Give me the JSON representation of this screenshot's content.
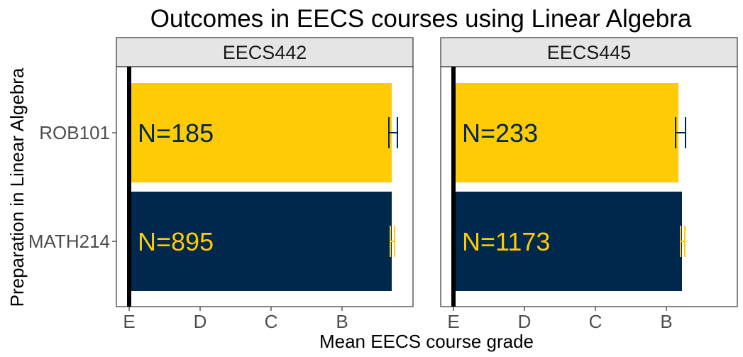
{
  "chart_data": {
    "type": "bar",
    "title": "Outcomes in EECS courses using Linear Algebra",
    "xlabel": "Mean EECS course grade",
    "ylabel": "Preparation in Linear Algebra",
    "x_ticks": [
      "E",
      "D",
      "C",
      "B"
    ],
    "x_tick_values": [
      0,
      1,
      2,
      3
    ],
    "xlim": [
      -0.18,
      4.0
    ],
    "categories": [
      "ROB101",
      "MATH214"
    ],
    "colors": {
      "ROB101": "#FFCB05",
      "MATH214": "#00274C"
    },
    "label_colors": {
      "ROB101": "#00274C",
      "MATH214": "#FFCB05"
    },
    "panels": [
      {
        "name": "EECS442",
        "bars": [
          {
            "category": "ROB101",
            "value": 3.7,
            "err_low": 3.66,
            "err_high": 3.78,
            "label": "N=185"
          },
          {
            "category": "MATH214",
            "value": 3.7,
            "err_low": 3.68,
            "err_high": 3.74,
            "label": "N=895"
          }
        ]
      },
      {
        "name": "EECS445",
        "bars": [
          {
            "category": "ROB101",
            "value": 3.17,
            "err_low": 3.13,
            "err_high": 3.27,
            "label": "N=233"
          },
          {
            "category": "MATH214",
            "value": 3.22,
            "err_low": 3.2,
            "err_high": 3.26,
            "label": "N=1173"
          }
        ]
      }
    ]
  }
}
